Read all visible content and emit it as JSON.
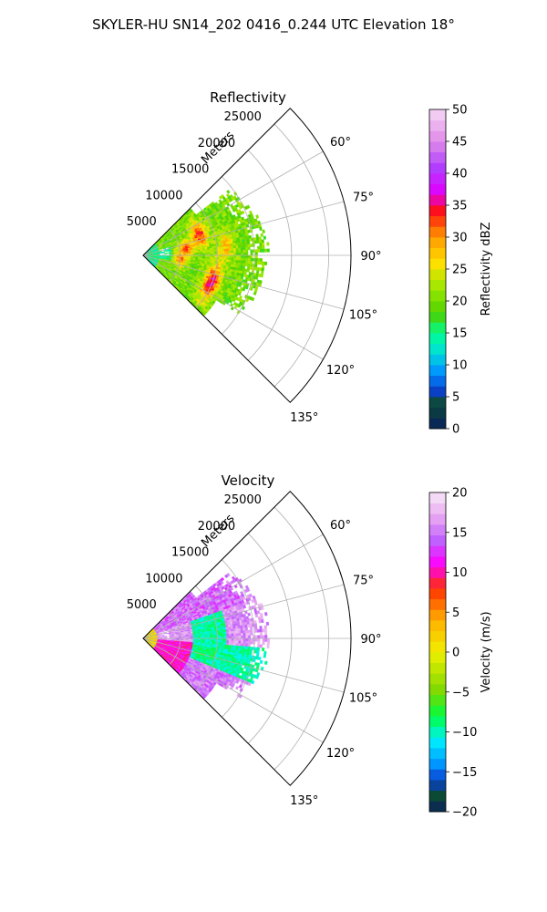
{
  "figure_title": "SKYLER-HU  SN14_202  0416_0.244 UTC Elevation 18°",
  "chart_data": [
    {
      "type": "heatmap",
      "projection": "polar-sector",
      "title": "Reflectivity",
      "radial_axis_label": "Meters",
      "radial_ticks": [
        "5000",
        "10000",
        "15000",
        "20000",
        "25000"
      ],
      "radial_tick_values": [
        5000,
        10000,
        15000,
        20000,
        25000
      ],
      "radial_range": [
        0,
        28000
      ],
      "azimuth_range_deg": [
        45,
        135
      ],
      "azimuth_ticks": [
        "60°",
        "75°",
        "90°",
        "105°",
        "120°",
        "135°"
      ],
      "azimuth_tick_values": [
        60,
        75,
        90,
        105,
        120,
        135
      ],
      "grid": true,
      "data_extent_m": 18000,
      "colorbar": {
        "label": "Reflectivity dBZ",
        "range": [
          0,
          50
        ],
        "ticks": [
          "0",
          "5",
          "10",
          "15",
          "20",
          "25",
          "30",
          "35",
          "40",
          "45",
          "50"
        ],
        "tick_values": [
          0,
          5,
          10,
          15,
          20,
          25,
          30,
          35,
          40,
          45,
          50
        ],
        "colors": [
          "#0a1f5e",
          "#0b4a35",
          "#0a3fd0",
          "#0096ff",
          "#00e0d8",
          "#00ff90",
          "#4cd000",
          "#9be800",
          "#ffe000",
          "#ff9a00",
          "#ff1010",
          "#e000ff",
          "#b040ff",
          "#e08ae8",
          "#f5d8f5"
        ],
        "color_stops": [
          0,
          4,
          6,
          9,
          12,
          15,
          18,
          22,
          26,
          30,
          34,
          37,
          41,
          45,
          50
        ]
      }
    },
    {
      "type": "heatmap",
      "projection": "polar-sector",
      "title": "Velocity",
      "radial_axis_label": "Meters",
      "radial_ticks": [
        "5000",
        "10000",
        "15000",
        "20000",
        "25000"
      ],
      "radial_tick_values": [
        5000,
        10000,
        15000,
        20000,
        25000
      ],
      "radial_range": [
        0,
        28000
      ],
      "azimuth_range_deg": [
        45,
        135
      ],
      "azimuth_ticks": [
        "60°",
        "75°",
        "90°",
        "105°",
        "120°",
        "135°"
      ],
      "azimuth_tick_values": [
        60,
        75,
        90,
        105,
        120,
        135
      ],
      "grid": true,
      "data_extent_m": 18000,
      "colorbar": {
        "label": "Velocity (m/s)",
        "range": [
          -20,
          20
        ],
        "ticks": [
          "−20",
          "−15",
          "−10",
          "−5",
          "0",
          "5",
          "10",
          "15",
          "20"
        ],
        "tick_values": [
          -20,
          -15,
          -10,
          -5,
          0,
          5,
          10,
          15,
          20
        ],
        "colors": [
          "#0a1f5e",
          "#0b4a35",
          "#0a3fd0",
          "#0096ff",
          "#00f0ff",
          "#00ff40",
          "#7ad800",
          "#f0f000",
          "#ffb000",
          "#ff3000",
          "#ff00ff",
          "#c060ff",
          "#e8a8f0",
          "#f8e8f8"
        ],
        "color_stops": [
          -20,
          -18,
          -16,
          -14,
          -11,
          -8,
          -5,
          0,
          4,
          8,
          11,
          14,
          17,
          20
        ]
      }
    }
  ]
}
